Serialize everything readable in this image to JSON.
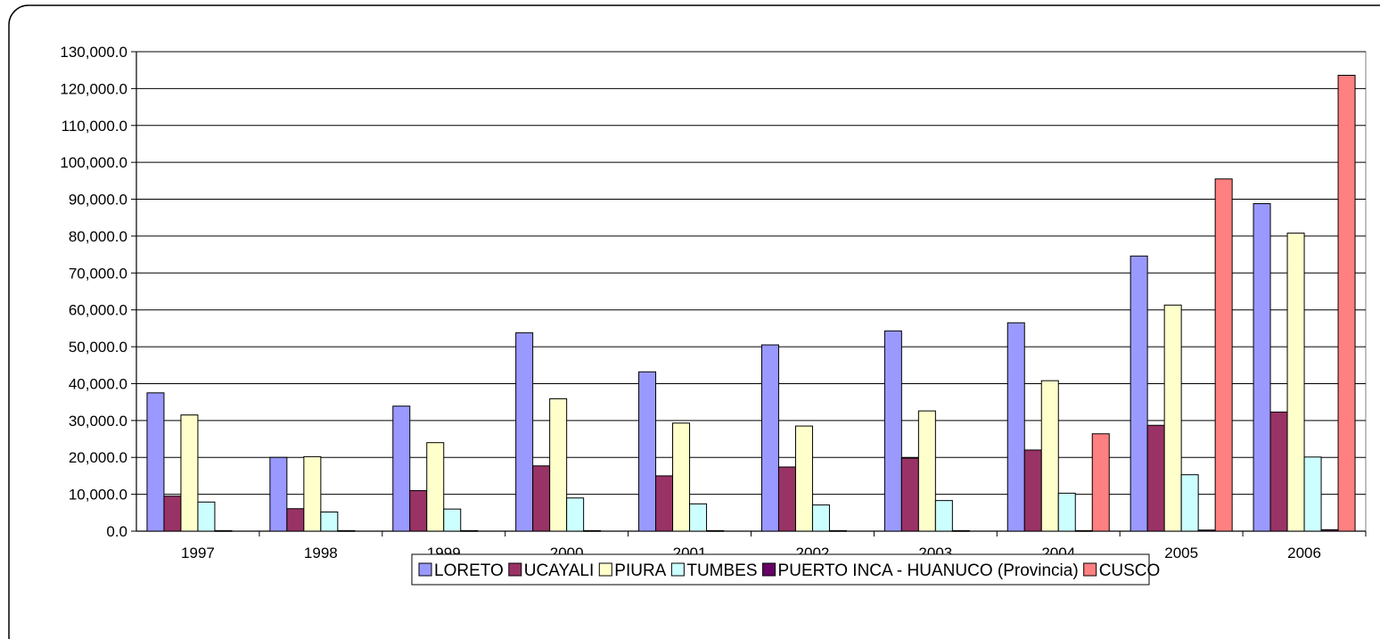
{
  "chart_data": {
    "type": "bar",
    "title": "",
    "xlabel": "",
    "ylabel": "",
    "categories": [
      "1997",
      "1998",
      "1999",
      "2000",
      "2001",
      "2002",
      "2003",
      "2004",
      "2005",
      "2006"
    ],
    "ylim": [
      0,
      130000
    ],
    "ytick_step": 10000,
    "yticks": [
      "0.0",
      "10,000.0",
      "20,000.0",
      "30,000.0",
      "40,000.0",
      "50,000.0",
      "60,000.0",
      "70,000.0",
      "80,000.0",
      "90,000.0",
      "100,000.0",
      "110,000.0",
      "120,000.0",
      "130,000.0"
    ],
    "grid": "horizontal major gridlines",
    "legend_position": "bottom",
    "series": [
      {
        "name": "LORETO",
        "color": "#9999FF",
        "values": [
          37500,
          20000,
          33900,
          53800,
          43200,
          50500,
          54300,
          56500,
          74600,
          88800
        ]
      },
      {
        "name": "UCAYALI",
        "color": "#993366",
        "values": [
          9500,
          6100,
          11000,
          17700,
          15000,
          17400,
          19800,
          22000,
          28700,
          32300
        ]
      },
      {
        "name": "PIURA",
        "color": "#FFFFCC",
        "values": [
          31500,
          20200,
          24000,
          35900,
          29300,
          28500,
          32600,
          40800,
          61300,
          80800
        ]
      },
      {
        "name": "TUMBES",
        "color": "#CCFFFF",
        "values": [
          7900,
          5200,
          6000,
          9000,
          7400,
          7100,
          8300,
          10300,
          15300,
          20100
        ]
      },
      {
        "name": "PUERTO INCA - HUANUCO (Provincia)",
        "color": "#660066",
        "values": [
          150,
          150,
          150,
          150,
          150,
          150,
          150,
          150,
          300,
          400
        ]
      },
      {
        "name": "CUSCO",
        "color": "#FF8080",
        "values": [
          0,
          0,
          0,
          0,
          0,
          0,
          0,
          26400,
          95500,
          123600
        ]
      }
    ]
  }
}
